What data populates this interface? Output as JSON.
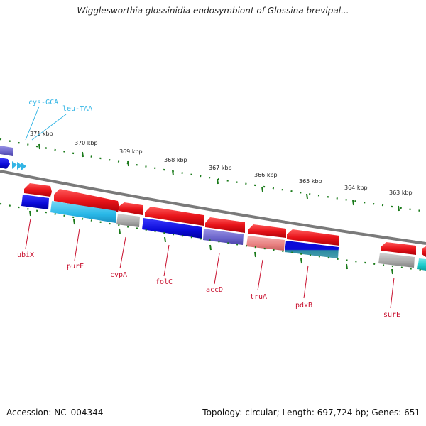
{
  "title": "Wigglesworthia glossinidia endosymbiont of Glossina brevipal...",
  "footer": {
    "accession": "Accession: NC_004344",
    "summary": "Topology: circular; Length: 697,724 bp; Genes: 651"
  },
  "colors": {
    "forward_strand": "#e8141a",
    "backbone": "#7a7a7a",
    "tick": "#1a7a1a",
    "gene_label": "#c8102e",
    "trna_label": "#33b5e5",
    "cog_blue": "#1010e0",
    "cog_cyan": "#29b8e8",
    "cog_gray": "#a8a8a8",
    "cog_purple": "#6a63c9",
    "cog_pink": "#e88080",
    "cog_teal": "#18c8c8"
  },
  "kbp_labels": [
    "371 kbp",
    "370 kbp",
    "369 kbp",
    "368 kbp",
    "367 kbp",
    "366 kbp",
    "365 kbp",
    "364 kbp",
    "363 kbp"
  ],
  "genes": [
    "ubiX",
    "purF",
    "cvpA",
    "folC",
    "accD",
    "truA",
    "pdxB",
    "surE"
  ],
  "trnas": [
    "cys-GCA",
    "leu-TAA"
  ]
}
